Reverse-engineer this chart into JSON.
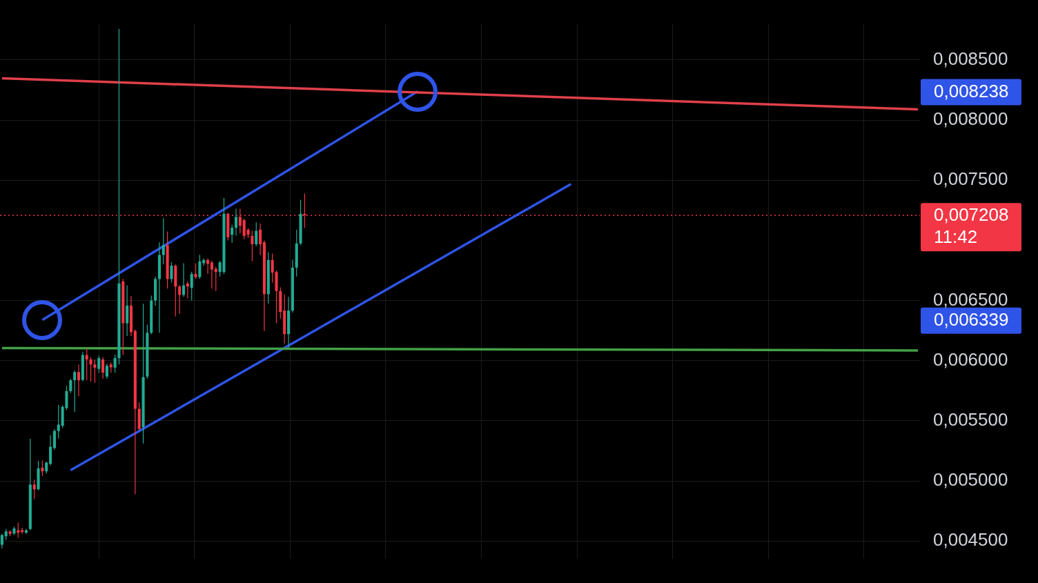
{
  "chart_data": {
    "type": "candlestick",
    "tick_labels": "y",
    "grid": true,
    "ylim": [
      0.00435,
      0.0088
    ],
    "yticks": [
      {
        "value": 0.0045,
        "label": "0,004500"
      },
      {
        "value": 0.005,
        "label": "0,005000"
      },
      {
        "value": 0.0055,
        "label": "0,005500"
      },
      {
        "value": 0.006,
        "label": "0,006000"
      },
      {
        "value": 0.0065,
        "label": "0,006500"
      },
      {
        "value": 0.0075,
        "label": "0,007500"
      },
      {
        "value": 0.008,
        "label": "0,008000"
      },
      {
        "value": 0.0085,
        "label": "0,008500"
      }
    ],
    "categories": [
      null,
      null,
      null,
      null,
      null,
      null,
      null,
      null,
      null,
      null,
      null,
      null,
      null,
      null,
      null,
      null,
      null,
      null,
      null,
      null,
      null,
      null,
      null,
      null,
      null,
      null,
      null,
      null,
      null,
      null,
      null,
      null,
      null,
      null,
      null,
      null,
      null,
      null,
      null,
      null,
      null,
      null,
      null,
      null,
      null,
      null,
      null,
      null,
      null,
      null,
      null,
      null,
      null,
      null,
      null,
      null,
      null,
      null,
      null,
      null,
      null,
      null,
      null,
      null,
      null,
      null,
      null,
      null,
      null,
      null,
      null,
      null,
      null,
      null,
      null,
      null,
      null,
      null,
      null,
      null,
      null,
      null,
      null,
      null,
      null,
      null,
      null,
      null,
      null,
      null,
      null,
      null,
      null,
      null,
      null,
      null,
      null,
      null,
      null,
      null,
      null,
      null,
      null,
      null,
      null,
      null,
      null,
      null,
      null,
      null,
      null,
      null,
      null,
      null,
      null,
      null,
      null,
      null,
      null,
      null,
      null,
      null,
      null,
      null,
      null,
      null,
      null,
      null,
      null,
      null,
      null,
      null,
      null,
      null,
      null,
      null,
      null,
      null,
      null,
      null,
      null,
      null,
      null,
      null,
      null,
      null,
      null,
      null,
      null,
      null,
      null,
      null,
      null,
      null,
      null,
      null,
      null,
      null,
      null,
      null,
      null,
      null,
      null,
      null,
      null,
      null,
      null,
      null,
      null,
      null,
      null,
      null,
      null,
      null,
      null,
      null,
      null,
      null,
      null,
      null,
      null,
      null,
      null,
      null,
      null,
      null,
      null,
      null,
      null,
      null,
      null,
      null,
      null,
      null,
      null,
      null,
      null,
      null,
      null,
      null,
      null,
      null,
      null,
      null,
      null,
      null,
      null,
      null,
      null,
      null,
      null,
      null,
      null,
      null,
      null,
      null,
      null,
      null,
      null,
      null,
      null,
      null,
      null,
      null,
      null,
      null,
      null,
      null
    ],
    "ohlc": [
      [
        0.00447,
        0.00456,
        0.00444,
        0.00455
      ],
      [
        0.00454,
        0.0046,
        0.00451,
        0.00458
      ],
      [
        0.00458,
        0.00459,
        0.00454,
        0.00456
      ],
      [
        0.004563,
        0.00462,
        0.00455,
        0.004605
      ],
      [
        0.00459,
        0.004653,
        0.004527,
        0.00457
      ],
      [
        0.00459,
        0.00461,
        0.00456,
        0.004575
      ],
      [
        0.00457,
        0.0046,
        0.00456,
        0.00459
      ],
      [
        0.0046,
        0.00535,
        0.00459,
        0.00497
      ],
      [
        0.00497,
        0.00501,
        0.00485,
        0.00493
      ],
      [
        0.004932,
        0.005168,
        0.00492,
        0.005105
      ],
      [
        0.00511,
        0.00517,
        0.00504,
        0.00508
      ],
      [
        0.00508,
        0.00516,
        0.00506,
        0.005153
      ],
      [
        0.005142,
        0.005379,
        0.00513,
        0.005284
      ],
      [
        0.005274,
        0.00543,
        0.00526,
        0.005416
      ],
      [
        0.005416,
        0.005632,
        0.005353,
        0.005468
      ],
      [
        0.005458,
        0.00563,
        0.00544,
        0.005616
      ],
      [
        0.005606,
        0.00579,
        0.00559,
        0.005747
      ],
      [
        0.005747,
        0.00585,
        0.00573,
        0.005837
      ],
      [
        0.005837,
        0.00592,
        0.005574,
        0.005905
      ],
      [
        0.005905,
        0.005968,
        0.005705,
        0.005837
      ],
      [
        0.00584,
        0.006074,
        0.00583,
        0.006047
      ],
      [
        0.006047,
        0.0061,
        0.005837,
        0.00601
      ],
      [
        0.00601,
        0.00603,
        0.005826,
        0.005968
      ],
      [
        0.005968,
        0.00601,
        0.005816,
        0.005942
      ],
      [
        0.005932,
        0.00604,
        0.0059,
        0.006021
      ],
      [
        0.00601,
        0.00603,
        0.00585,
        0.0059
      ],
      [
        0.005868,
        0.005975,
        0.00585,
        0.005958
      ],
      [
        0.005968,
        0.005985,
        0.0059,
        0.005945
      ],
      [
        0.005942,
        0.00605,
        0.0059,
        0.006021
      ],
      [
        0.006021,
        0.008758,
        0.005968,
        0.006642
      ],
      [
        0.006658,
        0.00668,
        0.006047,
        0.006311
      ],
      [
        0.006311,
        0.006626,
        0.006205,
        0.006458
      ],
      [
        0.006458,
        0.006537,
        0.006205,
        0.006237
      ],
      [
        0.006247,
        0.00626,
        0.00489,
        0.0056
      ],
      [
        0.0056,
        0.005653,
        0.005416,
        0.005432
      ],
      [
        0.005447,
        0.006474,
        0.005311,
        0.005863
      ],
      [
        0.005868,
        0.0063,
        0.00585,
        0.006232
      ],
      [
        0.006232,
        0.00654,
        0.00622,
        0.0065
      ],
      [
        0.0065,
        0.0067,
        0.006458,
        0.006679
      ],
      [
        0.006679,
        0.006984,
        0.006232,
        0.006879
      ],
      [
        0.006879,
        0.007184,
        0.0068,
        0.00696
      ],
      [
        0.00696,
        0.007074,
        0.0066,
        0.006679
      ],
      [
        0.006679,
        0.00682,
        0.00665,
        0.00679
      ],
      [
        0.00679,
        0.0068,
        0.006368,
        0.006616
      ],
      [
        0.006616,
        0.00663,
        0.00639,
        0.006547
      ],
      [
        0.006547,
        0.00681,
        0.00653,
        0.006626
      ],
      [
        0.006642,
        0.00666,
        0.00652,
        0.006616
      ],
      [
        0.006605,
        0.00674,
        0.0065,
        0.006721
      ],
      [
        0.006721,
        0.00681,
        0.00668,
        0.006695
      ],
      [
        0.006695,
        0.00688,
        0.00668,
        0.006826
      ],
      [
        0.00681,
        0.00685,
        0.00679,
        0.006837
      ],
      [
        0.006837,
        0.00685,
        0.006721,
        0.006805
      ],
      [
        0.006816,
        0.00683,
        0.0066,
        0.006758
      ],
      [
        0.006763,
        0.00678,
        0.00658,
        0.006737
      ],
      [
        0.006737,
        0.00683,
        0.0067,
        0.006816
      ],
      [
        0.006737,
        0.007353,
        0.00672,
        0.007221
      ],
      [
        0.007221,
        0.00723,
        0.007,
        0.007026
      ],
      [
        0.007047,
        0.00713,
        0.00698,
        0.007105
      ],
      [
        0.007105,
        0.007263,
        0.00704,
        0.007195
      ],
      [
        0.007195,
        0.007263,
        0.00706,
        0.007121
      ],
      [
        0.007168,
        0.00718,
        0.00701,
        0.007037
      ],
      [
        0.007089,
        0.0071,
        0.00702,
        0.007047
      ],
      [
        0.007037,
        0.00708,
        0.006826,
        0.006968
      ],
      [
        0.006968,
        0.00715,
        0.00695,
        0.007079
      ],
      [
        0.007089,
        0.00714,
        0.006879,
        0.006968
      ],
      [
        0.006984,
        0.007,
        0.006247,
        0.006553
      ],
      [
        0.006553,
        0.0069,
        0.006474,
        0.006837
      ],
      [
        0.006837,
        0.00689,
        0.00665,
        0.006732
      ],
      [
        0.006737,
        0.00675,
        0.006311,
        0.006579
      ],
      [
        0.006579,
        0.00661,
        0.00635,
        0.006405
      ],
      [
        0.006416,
        0.00655,
        0.006142,
        0.006221
      ],
      [
        0.006221,
        0.00653,
        0.006105,
        0.006416
      ],
      [
        0.006416,
        0.00684,
        0.0064,
        0.006774
      ],
      [
        0.006774,
        0.007089,
        0.0067,
        0.006974
      ],
      [
        0.006974,
        0.007337,
        0.00696,
        0.007221
      ],
      [
        0.007221,
        0.007389,
        0.007105,
        0.007208
      ],
      null,
      null,
      null,
      null,
      null,
      null,
      null,
      null,
      null,
      null,
      null,
      null,
      null,
      null,
      null,
      null,
      null,
      null,
      null,
      null,
      null,
      null,
      null,
      null,
      null,
      null,
      null,
      null,
      null,
      null,
      null,
      null,
      null,
      null,
      null,
      null,
      null,
      null,
      null,
      null,
      null,
      null,
      null,
      null,
      null,
      null,
      null,
      null,
      null,
      null,
      null,
      null,
      null,
      null,
      null,
      null,
      null,
      null,
      null,
      null,
      null,
      null,
      null,
      null,
      null,
      null,
      null,
      null,
      null,
      null,
      null,
      null,
      null,
      null,
      null,
      null,
      null,
      null,
      null,
      null,
      null,
      null,
      null,
      null,
      null,
      null,
      null,
      null,
      null,
      null,
      null,
      null,
      null,
      null,
      null,
      null,
      null,
      null,
      null,
      null,
      null,
      null,
      null,
      null,
      null,
      null,
      null,
      null,
      null,
      null,
      null,
      null,
      null,
      null,
      null,
      null,
      null,
      null,
      null,
      null,
      null,
      null,
      null,
      null,
      null,
      null,
      null,
      null,
      null,
      null,
      null,
      null,
      null,
      null,
      null,
      null,
      null,
      null,
      null,
      null,
      null,
      null,
      null,
      null,
      null,
      null,
      null,
      null,
      null,
      null,
      null,
      null
    ],
    "series": [
      {
        "type": "line",
        "color": "#e0404a",
        "values": [
          0.008347,
          null,
          null,
          null,
          null,
          null,
          null,
          null,
          null,
          null,
          null,
          null,
          null,
          null,
          null,
          null,
          null,
          null,
          null,
          null,
          null,
          null,
          null,
          null,
          null,
          null,
          null,
          null,
          null,
          null,
          null,
          null,
          null,
          null,
          null,
          null,
          null,
          null,
          null,
          null,
          null,
          null,
          null,
          null,
          null,
          null,
          null,
          null,
          null,
          null,
          null,
          null,
          null,
          null,
          null,
          null,
          null,
          null,
          null,
          null,
          null,
          null,
          null,
          null,
          null,
          null,
          null,
          null,
          null,
          null,
          null,
          null,
          null,
          null,
          null,
          null,
          null,
          null,
          null,
          null,
          null,
          null,
          null,
          null,
          null,
          null,
          null,
          null,
          null,
          null,
          null,
          null,
          null,
          null,
          null,
          null,
          null,
          null,
          null,
          null,
          null,
          null,
          null,
          null,
          null,
          null,
          null,
          null,
          null,
          null,
          null,
          null,
          null,
          null,
          null,
          null,
          null,
          null,
          null,
          null,
          null,
          null,
          null,
          null,
          null,
          null,
          null,
          null,
          null,
          null,
          null,
          null,
          null,
          null,
          null,
          null,
          null,
          null,
          null,
          null,
          null,
          null,
          null,
          null,
          null,
          null,
          null,
          null,
          null,
          null,
          null,
          null,
          null,
          null,
          null,
          null,
          null,
          null,
          null,
          null,
          null,
          null,
          null,
          null,
          null,
          null,
          null,
          null,
          null,
          null,
          null,
          null,
          null,
          null,
          null,
          null,
          null,
          null,
          null,
          null,
          null,
          null,
          null,
          null,
          null,
          null,
          null,
          null,
          null,
          null,
          null,
          null,
          null,
          null,
          null,
          null,
          null,
          null,
          null,
          null,
          null,
          null,
          null,
          null,
          null,
          null,
          null,
          null,
          null,
          null,
          null,
          null,
          null,
          null,
          null,
          null,
          null,
          null,
          null,
          null,
          null,
          null,
          null,
          null,
          null,
          null,
          null,
          0.008089
        ]
      },
      {
        "type": "line",
        "color": "#43a047",
        "values": [
          0.006105,
          null,
          null,
          null,
          null,
          null,
          null,
          null,
          null,
          null,
          null,
          null,
          null,
          null,
          null,
          null,
          null,
          null,
          null,
          null,
          null,
          null,
          null,
          null,
          null,
          null,
          null,
          null,
          null,
          null,
          null,
          null,
          null,
          null,
          null,
          null,
          null,
          null,
          null,
          null,
          null,
          null,
          null,
          null,
          null,
          null,
          null,
          null,
          null,
          null,
          null,
          null,
          null,
          null,
          null,
          null,
          null,
          null,
          null,
          null,
          null,
          null,
          null,
          null,
          null,
          null,
          null,
          null,
          null,
          null,
          null,
          null,
          null,
          null,
          null,
          null,
          null,
          null,
          null,
          null,
          null,
          null,
          null,
          null,
          null,
          null,
          null,
          null,
          null,
          null,
          null,
          null,
          null,
          null,
          null,
          null,
          null,
          null,
          null,
          null,
          null,
          null,
          null,
          null,
          null,
          null,
          null,
          null,
          null,
          null,
          null,
          null,
          null,
          null,
          null,
          null,
          null,
          null,
          null,
          null,
          null,
          null,
          null,
          null,
          null,
          null,
          null,
          null,
          null,
          null,
          null,
          null,
          null,
          null,
          null,
          null,
          null,
          null,
          null,
          null,
          null,
          null,
          null,
          null,
          null,
          null,
          null,
          null,
          null,
          null,
          null,
          null,
          null,
          null,
          null,
          null,
          null,
          null,
          null,
          null,
          null,
          null,
          null,
          null,
          null,
          null,
          null,
          null,
          null,
          null,
          null,
          null,
          null,
          null,
          null,
          null,
          null,
          null,
          null,
          null,
          null,
          null,
          null,
          null,
          null,
          null,
          null,
          null,
          null,
          null,
          null,
          null,
          null,
          null,
          null,
          null,
          null,
          null,
          null,
          null,
          null,
          null,
          null,
          null,
          null,
          null,
          null,
          null,
          null,
          null,
          null,
          null,
          null,
          null,
          null,
          null,
          null,
          null,
          null,
          null,
          null,
          null,
          null,
          null,
          null,
          null,
          null,
          0.006085
        ]
      },
      {
        "type": "line",
        "color": "#2f54e8",
        "values": [
          null,
          null,
          null,
          null,
          null,
          null,
          null,
          null,
          null,
          null,
          null,
          null,
          null,
          null,
          null,
          null,
          null,
          0.005089,
          null,
          null,
          null,
          null,
          null,
          null,
          null,
          null,
          null,
          null,
          null,
          null,
          null,
          null,
          null,
          null,
          null,
          null,
          null,
          null,
          null,
          null,
          null,
          null,
          null,
          null,
          null,
          null,
          null,
          null,
          null,
          null,
          null,
          null,
          null,
          null,
          null,
          null,
          null,
          null,
          null,
          null,
          null,
          null,
          null,
          null,
          null,
          null,
          null,
          null,
          null,
          null,
          null,
          null,
          null,
          null,
          null,
          null,
          null,
          null,
          null,
          null,
          null,
          null,
          null,
          null,
          null,
          null,
          null,
          null,
          null,
          null,
          null,
          null,
          null,
          null,
          null,
          null,
          null,
          null,
          null,
          null,
          null,
          null,
          null,
          null,
          null,
          null,
          null,
          null,
          null,
          null,
          null,
          null,
          null,
          null,
          null,
          null,
          null,
          null,
          null,
          null,
          null,
          null,
          null,
          null,
          null,
          null,
          null,
          null,
          null,
          null,
          null,
          null,
          null,
          null,
          null,
          null,
          null,
          null,
          null,
          null,
          null,
          0.007468,
          null,
          null,
          null,
          null,
          null,
          null,
          null,
          null,
          null,
          null,
          null,
          null,
          null,
          null,
          null,
          null,
          null,
          null,
          null,
          null,
          null,
          null,
          null,
          null,
          null,
          null,
          null,
          null,
          null,
          null,
          null,
          null,
          null,
          null,
          null,
          null,
          null,
          null,
          null,
          null,
          null,
          null,
          null,
          null,
          null,
          null,
          null,
          null,
          null,
          null,
          null,
          null,
          null,
          null,
          null,
          null,
          null,
          null,
          null,
          null,
          null,
          null,
          null,
          null,
          null,
          null,
          null,
          null,
          null,
          null,
          null,
          null,
          null,
          null,
          null,
          null,
          null,
          null,
          null,
          null,
          null,
          null,
          null,
          null,
          null,
          null
        ]
      },
      {
        "type": "line",
        "color": "#2f54e8",
        "values": [
          null,
          null,
          null,
          null,
          null,
          null,
          null,
          null,
          null,
          null,
          0.006339,
          null,
          null,
          null,
          null,
          null,
          null,
          null,
          null,
          null,
          null,
          null,
          null,
          null,
          null,
          null,
          null,
          null,
          null,
          null,
          null,
          null,
          null,
          null,
          null,
          null,
          null,
          null,
          null,
          null,
          null,
          null,
          null,
          null,
          null,
          null,
          null,
          null,
          null,
          null,
          null,
          null,
          null,
          null,
          null,
          null,
          null,
          null,
          null,
          null,
          null,
          null,
          null,
          null,
          null,
          null,
          null,
          null,
          null,
          null,
          null,
          null,
          null,
          null,
          null,
          null,
          null,
          null,
          null,
          null,
          null,
          null,
          null,
          null,
          null,
          null,
          null,
          null,
          null,
          null,
          null,
          null,
          null,
          null,
          null,
          null,
          null,
          null,
          null,
          null,
          null,
          null,
          null,
          0.008238,
          null,
          null,
          null,
          null,
          null,
          null,
          null,
          null,
          null,
          null,
          null,
          null,
          null,
          null,
          null,
          null,
          null,
          null,
          null,
          null,
          null,
          null,
          null,
          null,
          null,
          null,
          null,
          null,
          null,
          null,
          null,
          null,
          null,
          null,
          null,
          null,
          null,
          null,
          null,
          null,
          null,
          null,
          null,
          null,
          null,
          null,
          null,
          null,
          null,
          null,
          null,
          null,
          null,
          null,
          null,
          null,
          null,
          null,
          null,
          null,
          null,
          null,
          null,
          null,
          null,
          null,
          null,
          null,
          null,
          null,
          null,
          null,
          null,
          null,
          null,
          null,
          null,
          null,
          null,
          null,
          null,
          null,
          null,
          null,
          null,
          null,
          null,
          null,
          null,
          null,
          null,
          null,
          null,
          null,
          null,
          null,
          null,
          null,
          null,
          null,
          null,
          null,
          null,
          null,
          null,
          null,
          null,
          null,
          null,
          null,
          null,
          null,
          null,
          null,
          null,
          null,
          null,
          null,
          null,
          null,
          null,
          null,
          null,
          null
        ]
      }
    ],
    "annotations": [
      "0,008238",
      "0,006339"
    ],
    "ref_lines": [
      {
        "axis": "y",
        "value": 0.007208,
        "label": "0,007208\n11:42",
        "color": "#f23645",
        "line_style": "dotted"
      }
    ]
  }
}
